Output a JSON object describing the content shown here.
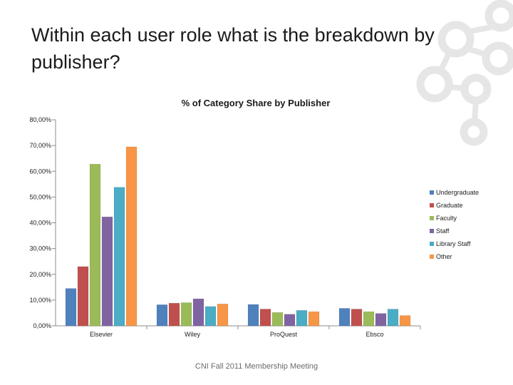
{
  "slide": {
    "title": "Within each user role what is the breakdown by publisher?",
    "footer": "CNI Fall 2011 Membership Meeting"
  },
  "chart_data": {
    "type": "bar",
    "title": "% of Category Share by Publisher",
    "xlabel": "",
    "ylabel": "",
    "categories": [
      "Elsevier",
      "Wiley",
      "ProQuest",
      "Ebsco"
    ],
    "ylim": [
      0,
      80
    ],
    "yticks": [
      0,
      10,
      20,
      30,
      40,
      50,
      60,
      70,
      80
    ],
    "ytick_labels": [
      "0,00%",
      "10,00%",
      "20,00%",
      "30,00%",
      "40,00%",
      "50,00%",
      "60,00%",
      "70,00%",
      "80,00%"
    ],
    "grid": false,
    "legend_position": "right",
    "series": [
      {
        "name": "Undergraduate",
        "color": "#4F81BD",
        "values": [
          14.5,
          8.2,
          8.3,
          6.8
        ]
      },
      {
        "name": "Graduate",
        "color": "#C0504D",
        "values": [
          23.0,
          8.8,
          6.5,
          6.5
        ]
      },
      {
        "name": "Faculty",
        "color": "#9BBB59",
        "values": [
          62.8,
          9.0,
          5.2,
          5.5
        ]
      },
      {
        "name": "Staff",
        "color": "#8064A2",
        "values": [
          42.3,
          10.5,
          4.5,
          4.8
        ]
      },
      {
        "name": "Library Staff",
        "color": "#4BACC6",
        "values": [
          53.8,
          7.5,
          6.0,
          6.5
        ]
      },
      {
        "name": "Other",
        "color": "#F79646",
        "values": [
          69.5,
          8.5,
          5.5,
          4.0
        ]
      }
    ]
  }
}
